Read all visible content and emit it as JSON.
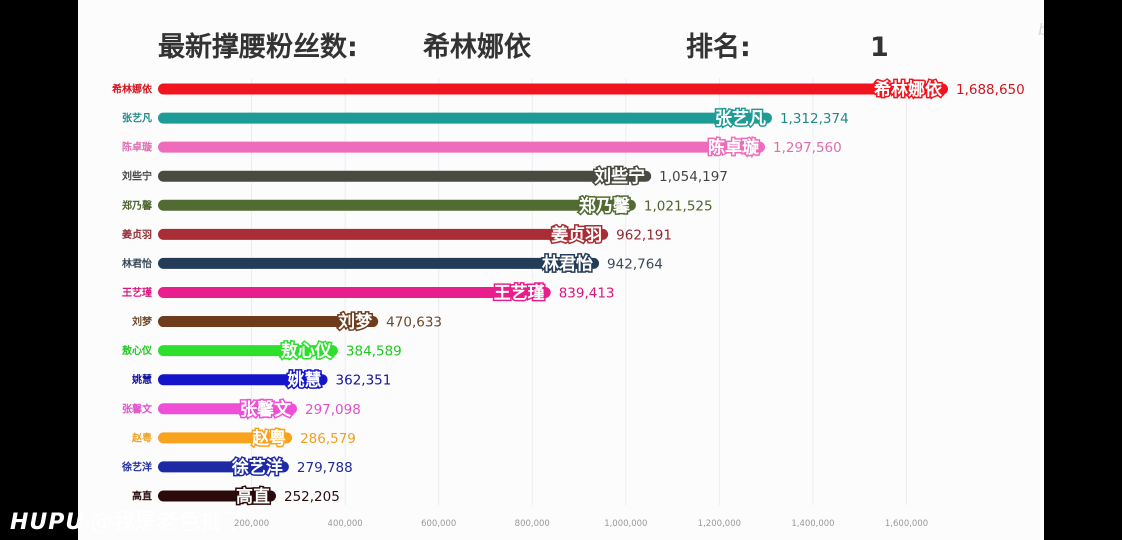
{
  "header": {
    "fans_label": "最新撑腰粉丝数:",
    "leader_name": "希林娜依",
    "rank_label": "排名:",
    "rank_value": "1"
  },
  "chart_data": {
    "type": "bar",
    "orientation": "horizontal",
    "categories": [
      "希林娜依",
      "张艺凡",
      "陈卓璇",
      "刘些宁",
      "郑乃馨",
      "姜贞羽",
      "林君怡",
      "王艺瑾",
      "刘梦",
      "敖心仪",
      "姚慧",
      "张馨文",
      "赵粤",
      "徐艺洋",
      "高直"
    ],
    "values": [
      1688650,
      1312374,
      1297560,
      1054197,
      1021525,
      962191,
      942764,
      839413,
      470633,
      384589,
      362351,
      297098,
      286579,
      279788,
      252205
    ],
    "value_labels": [
      "1,688,650",
      "1,312,374",
      "1,297,560",
      "1,054,197",
      "1,021,525",
      "962,191",
      "942,764",
      "839,413",
      "470,633",
      "384,589",
      "362,351",
      "297,098",
      "286,579",
      "279,788",
      "252,205"
    ],
    "colors": [
      "#f0141e",
      "#1f9b96",
      "#ee6cbb",
      "#4a4a40",
      "#526b32",
      "#a92d34",
      "#243c57",
      "#e91e8c",
      "#6e3c1c",
      "#2ee02e",
      "#1414c8",
      "#ef4fd4",
      "#f8a21e",
      "#1e2aa4",
      "#2a0a0a"
    ],
    "label_colors": [
      "#d4141e",
      "#1f8a86",
      "#e06cb0",
      "#444444",
      "#4f6530",
      "#8e2a30",
      "#3a4a5a",
      "#d8187e",
      "#6a4a2c",
      "#20c820",
      "#1414a0",
      "#e050c8",
      "#f0a020",
      "#1e2aa0",
      "#2a1010"
    ],
    "x_ticks": [
      "200,000",
      "400,000",
      "600,000",
      "800,000",
      "1,000,000",
      "1,200,000",
      "1,400,000",
      "1,600,000"
    ],
    "x_tick_values": [
      200000,
      400000,
      600000,
      800000,
      1000000,
      1200000,
      1400000,
      1600000
    ],
    "xlim": [
      0,
      1750000
    ],
    "grid": true
  },
  "watermark": {
    "brand": "HUPU",
    "handle": "@我是老色批了"
  },
  "corner_logo": "bilibili"
}
